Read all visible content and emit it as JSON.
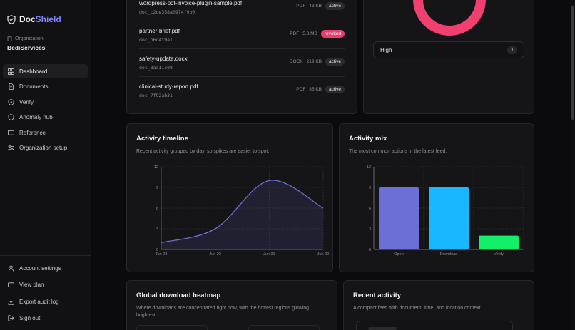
{
  "brand": {
    "name_part1": "Doc",
    "name_part2": "Shield"
  },
  "org": {
    "label": "Organization",
    "name": "BediServices"
  },
  "nav": [
    {
      "label": "Dashboard",
      "icon": "grid-icon",
      "active": true
    },
    {
      "label": "Documents",
      "icon": "document-icon"
    },
    {
      "label": "Verify",
      "icon": "shield-check-icon"
    },
    {
      "label": "Anomaly hub",
      "icon": "shield-alert-icon"
    },
    {
      "label": "Reference",
      "icon": "book-icon"
    },
    {
      "label": "Organization setup",
      "icon": "sliders-icon"
    }
  ],
  "bottom_nav": [
    {
      "label": "Account settings",
      "icon": "user-icon"
    },
    {
      "label": "View plan",
      "icon": "card-icon"
    },
    {
      "label": "Export audit log",
      "icon": "download-icon"
    },
    {
      "label": "Sign out",
      "icon": "logout-icon"
    }
  ],
  "files": [
    {
      "name": "wordpress-pdf-invoice-plugin-sample.pdf",
      "id": "doc_c2de358a0974f9b0",
      "type": "PDF",
      "size": "43 KB",
      "status": "active"
    },
    {
      "name": "partner-brief.pdf",
      "id": "doc_b6c4f9a1",
      "type": "PDF",
      "size": "5.3 MB",
      "status": "revoked"
    },
    {
      "name": "safety-update.docx",
      "id": "doc_3aa11c08",
      "type": "DOCX",
      "size": "219 KB",
      "status": "active"
    },
    {
      "name": "clinical-study-report.pdf",
      "id": "doc_7f92ab31",
      "type": "PDF",
      "size": "35 KB",
      "status": "active"
    }
  ],
  "risk": {
    "label": "High",
    "count": "1",
    "accent": "#f0406f"
  },
  "timeline": {
    "title": "Activity timeline",
    "subtitle": "Recent activity grouped by day, so spikes are easier to spot."
  },
  "mix": {
    "title": "Activity mix",
    "subtitle": "The most common actions in the latest feed."
  },
  "heatmap": {
    "title": "Global download heatmap",
    "subtitle": "Where downloads are concentrated right now, with the hottest regions glowing brightest."
  },
  "recent": {
    "title": "Recent activity",
    "subtitle": "A compact feed with document, time, and location context."
  },
  "chart_data": [
    {
      "type": "line",
      "x": [
        "Jun 23",
        "Jun 22",
        "Jun 21",
        "Jun 20"
      ],
      "values": [
        1,
        3,
        10,
        6
      ],
      "ylim": [
        0,
        12
      ],
      "yticks": [
        0,
        3,
        6,
        9,
        12
      ],
      "grid": true,
      "color": "#6b6fd6"
    },
    {
      "type": "bar",
      "categories": [
        "Open",
        "Download",
        "Verify"
      ],
      "values": [
        9,
        9,
        2
      ],
      "colors": [
        "#6b6fd6",
        "#17b8ff",
        "#11ef6b"
      ],
      "ylim": [
        0,
        12
      ],
      "yticks": [
        0,
        3,
        6,
        9,
        12
      ],
      "grid": true
    }
  ]
}
